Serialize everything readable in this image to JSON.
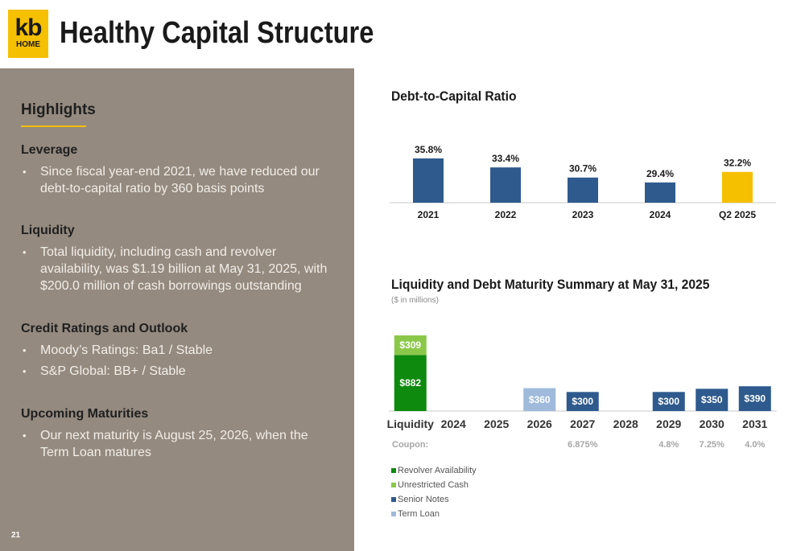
{
  "header": {
    "logo_top": "kb",
    "logo_bottom": "HOME",
    "title": "Healthy Capital Structure"
  },
  "highlights": {
    "title": "Highlights",
    "sections": [
      {
        "heading": "Leverage",
        "bullets": [
          "Since fiscal year-end 2021, we have reduced our debt-to-capital ratio by 360 basis points"
        ]
      },
      {
        "heading": "Liquidity",
        "bullets": [
          "Total liquidity, including cash and revolver availability, was $1.19 billion at May 31, 2025, with $200.0 million of cash borrowings outstanding"
        ]
      },
      {
        "heading": "Credit Ratings and Outlook",
        "bullets": [
          "Moody’s Ratings: Ba1 / Stable",
          "S&P Global: BB+ / Stable"
        ]
      },
      {
        "heading": "Upcoming Maturities",
        "bullets": [
          "Our next maturity is August 25, 2026, when the Term Loan matures"
        ]
      }
    ]
  },
  "page_number": "21",
  "colors": {
    "brand_yellow": "#f5c000",
    "panel_taupe": "#958a7f",
    "bar_blue": "#2e5a8e",
    "revolver_green": "#0e8a0e",
    "cash_green": "#8bc84a",
    "term_loan": "#9fbadb"
  },
  "chart_data": [
    {
      "type": "bar",
      "title": "Debt-to-Capital Ratio",
      "categories": [
        "2021",
        "2022",
        "2023",
        "2024",
        "Q2 2025"
      ],
      "values": [
        35.8,
        33.4,
        30.7,
        29.4,
        32.2
      ],
      "labels": [
        "35.8%",
        "33.4%",
        "30.7%",
        "29.4%",
        "32.2%"
      ],
      "bar_colors": [
        "#2e5a8e",
        "#2e5a8e",
        "#2e5a8e",
        "#2e5a8e",
        "#f5c000"
      ],
      "ylim": [
        24,
        36
      ],
      "grid": false
    },
    {
      "type": "bar",
      "stacked": true,
      "title": "Liquidity and Debt Maturity Summary at May 31, 2025",
      "subtitle": "($ in millions)",
      "categories": [
        "Liquidity",
        "2024",
        "2025",
        "2026",
        "2027",
        "2028",
        "2029",
        "2030",
        "2031"
      ],
      "series": [
        {
          "name": "Revolver Availability",
          "color": "#0e8a0e",
          "values": [
            882,
            0,
            0,
            0,
            0,
            0,
            0,
            0,
            0
          ]
        },
        {
          "name": "Unrestricted Cash",
          "color": "#8bc84a",
          "values": [
            309,
            0,
            0,
            0,
            0,
            0,
            0,
            0,
            0
          ]
        },
        {
          "name": "Senior Notes",
          "color": "#2e5a8e",
          "values": [
            0,
            0,
            0,
            0,
            300,
            0,
            300,
            350,
            390
          ]
        },
        {
          "name": "Term Loan",
          "color": "#9fbadb",
          "values": [
            0,
            0,
            0,
            360,
            0,
            0,
            0,
            0,
            0
          ]
        }
      ],
      "coupon_label": "Coupon:",
      "coupons": [
        "",
        "",
        "",
        "",
        "6.875%",
        "",
        "4.8%",
        "7.25%",
        "4.0%"
      ],
      "grid": false,
      "legend": "bottom-left"
    }
  ]
}
